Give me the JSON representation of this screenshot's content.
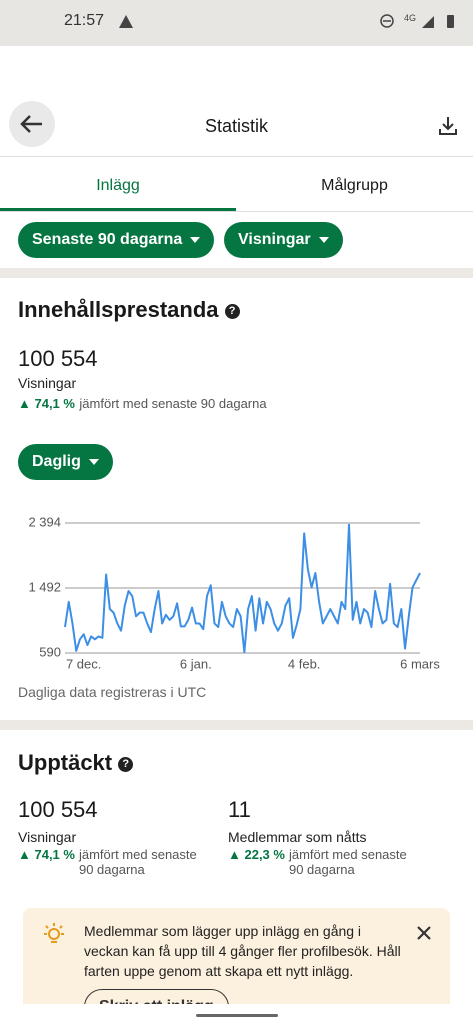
{
  "status_bar": {
    "time": "21:57",
    "network": "4G"
  },
  "header": {
    "title": "Statistik"
  },
  "tabs": [
    "Inlägg",
    "Målgrupp"
  ],
  "filters": [
    "Senaste 90 dagarna",
    "Visningar"
  ],
  "performance": {
    "title": "Innehållsprestanda",
    "value": "100 554",
    "label": "Visningar",
    "change": "74,1 %",
    "comparison": "jämfört med senaste 90 dagarna",
    "interval": "Daglig",
    "chart": {
      "type": "line",
      "color": "#3d8fe6",
      "grid": true,
      "categories": [
        null,
        null,
        null,
        null,
        null,
        "7 dec.",
        null,
        null,
        null,
        null,
        null,
        null,
        null,
        null,
        null,
        null,
        null,
        null,
        null,
        null,
        null,
        null,
        null,
        null,
        null,
        null,
        null,
        null,
        null,
        null,
        null,
        null,
        null,
        null,
        null,
        "6 jan.",
        null,
        null,
        null,
        null,
        null,
        null,
        null,
        null,
        null,
        null,
        null,
        null,
        null,
        null,
        null,
        null,
        null,
        null,
        null,
        null,
        null,
        null,
        null,
        null,
        null,
        null,
        null,
        null,
        "4 feb.",
        null,
        null,
        null,
        null,
        null,
        null,
        null,
        null,
        null,
        null,
        null,
        null,
        null,
        null,
        null,
        null,
        null,
        null,
        null,
        null,
        null,
        null,
        null,
        null,
        null,
        null,
        null,
        null,
        null,
        null,
        "6 mars"
      ],
      "values": [
        950,
        1300,
        1000,
        620,
        780,
        850,
        700,
        820,
        780,
        820,
        800,
        1680,
        1200,
        1150,
        1000,
        900,
        1250,
        1450,
        1380,
        1100,
        1150,
        1150,
        1000,
        880,
        1200,
        1450,
        1000,
        1120,
        1050,
        1100,
        1280,
        960,
        960,
        1050,
        1220,
        1000,
        1000,
        920,
        1380,
        1530,
        1000,
        950,
        1300,
        1100,
        1000,
        950,
        1200,
        1100,
        600,
        1200,
        1380,
        900,
        1350,
        1000,
        1300,
        1200,
        1000,
        900,
        1000,
        1250,
        1350,
        800,
        980,
        1200,
        2250,
        1750,
        1500,
        1700,
        1300,
        1000,
        1100,
        1200,
        1100,
        1000,
        1300,
        1200,
        2370,
        1050,
        1300,
        1000,
        1200,
        1150,
        950,
        1450,
        1200,
        1000,
        1050,
        1550,
        1000,
        950,
        1200,
        650,
        1100,
        1500,
        1600,
        1700
      ],
      "ylim": [
        590,
        2394
      ],
      "yticks": [
        590,
        {
          "value": 1492,
          "label": "1 492"
        },
        {
          "value": 2394,
          "label": "2 394"
        }
      ]
    },
    "note": "Dagliga data registreras i UTC"
  },
  "discovery": {
    "title": "Upptäckt",
    "metrics": [
      {
        "value": "100 554",
        "label": "Visningar",
        "change": "74,1 %",
        "comparison": "jämfört med senaste 90 dagarna"
      },
      {
        "value": "11",
        "label": "Medlemmar som nåtts",
        "change": "22,3 %",
        "comparison": "jämfört med senaste 90 dagarna"
      }
    ]
  },
  "tip": {
    "text": "Medlemmar som lägger upp inlägg en gång i veckan kan få upp till 4 gånger fler profilbesök. Håll farten uppe genom att skapa ett nytt inlägg.",
    "button": "Skriv ett inlägg"
  }
}
